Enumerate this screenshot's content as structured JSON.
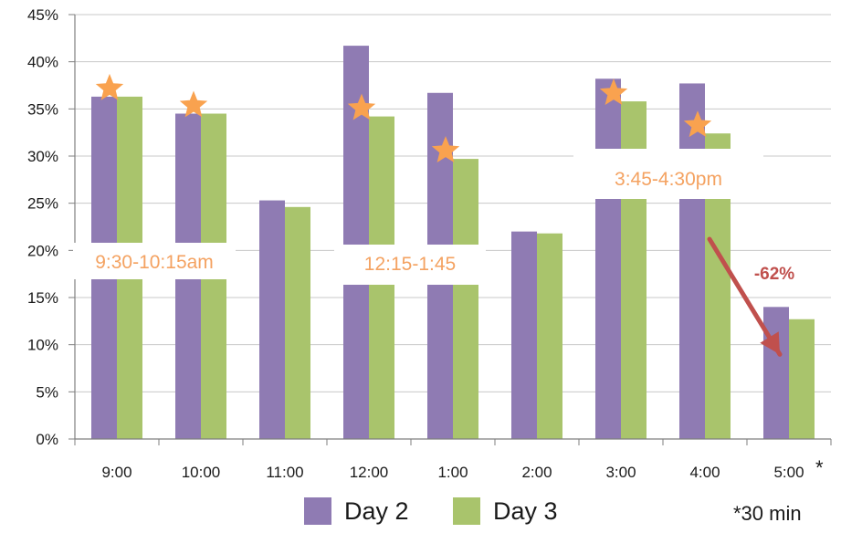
{
  "chart_data": {
    "type": "bar",
    "categories": [
      "9:00",
      "10:00",
      "11:00",
      "12:00",
      "1:00",
      "2:00",
      "3:00",
      "4:00",
      "5:00"
    ],
    "series": [
      {
        "name": "Day 2",
        "color": "#8F7BB3",
        "values": [
          36.3,
          34.5,
          25.3,
          41.7,
          36.7,
          22.0,
          38.2,
          37.7,
          14.0
        ]
      },
      {
        "name": "Day 3",
        "color": "#A9C46C",
        "values": [
          36.3,
          34.5,
          24.6,
          34.2,
          29.7,
          21.8,
          35.8,
          32.4,
          12.7
        ]
      }
    ],
    "ylim": [
      0,
      45
    ],
    "y_ticks": [
      0,
      5,
      10,
      15,
      20,
      25,
      30,
      35,
      40,
      45
    ],
    "y_tick_format": "percent",
    "grid": true,
    "legend_position": "bottom",
    "highlights": [
      {
        "label": "9:30-10:15am",
        "categories": [
          "9:00",
          "10:00"
        ],
        "star_series": "Day 3"
      },
      {
        "label": "12:15-1:45",
        "categories": [
          "12:00",
          "1:00"
        ],
        "star_series": "Day 3"
      },
      {
        "label": "3:45-4:30pm",
        "categories": [
          "3:00",
          "4:00"
        ],
        "star_series": "Day 3"
      }
    ],
    "annotations": {
      "drop_label": "-62%",
      "drop_from": "4:00",
      "drop_to": "5:00",
      "last_tick_marker": "*",
      "footnote": "*30 min"
    },
    "colors": {
      "grid": "#c8c8c8",
      "axis": "#7f7f7f",
      "star": "#F9A24F",
      "highlight_text": "#F4A261",
      "arrow": "#C0504D",
      "drop_text": "#C0504D"
    }
  }
}
